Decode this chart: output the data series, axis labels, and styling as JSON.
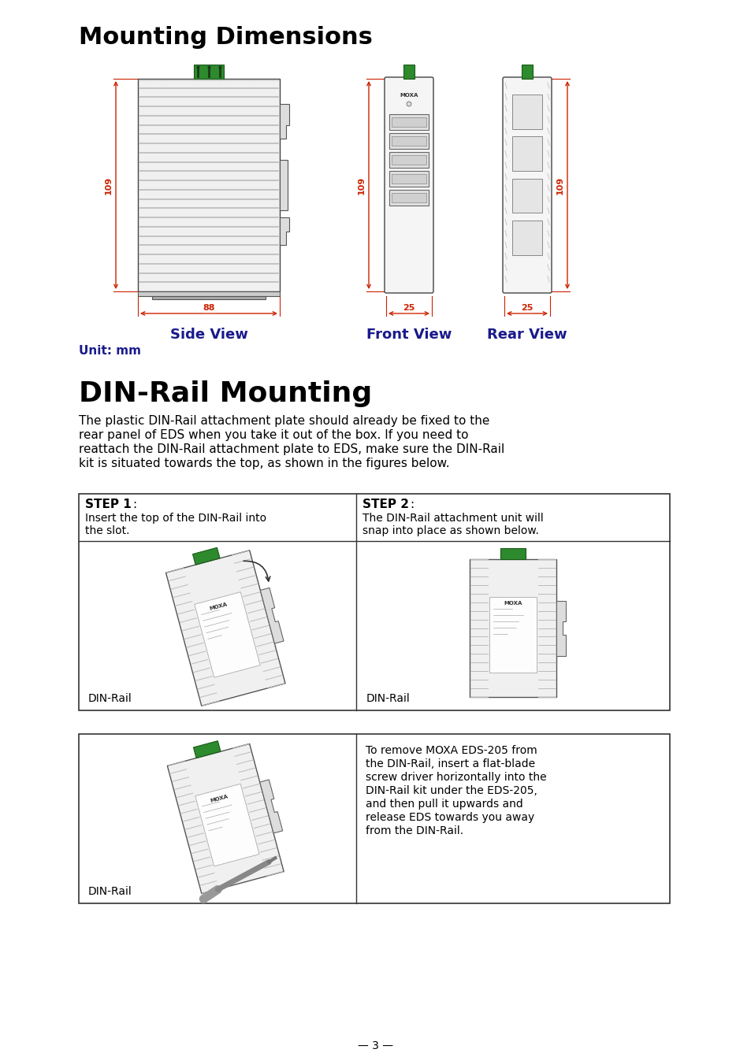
{
  "title": "Mounting Dimensions",
  "title_fontsize": 22,
  "bg_color": "#ffffff",
  "dim_color": "#cc2200",
  "label_color": "#1a1a8c",
  "green_color": "#2d8a2d",
  "side_view_label": "Side View",
  "front_view_label": "Front View",
  "rear_view_label": "Rear View",
  "unit_label": "Unit: mm",
  "dim_88": "88",
  "dim_25a": "25",
  "dim_25b": "25",
  "dim_109a": "109",
  "dim_109b": "109",
  "dim_109c": "109",
  "din_rail_title": "DIN-Rail Mounting",
  "din_rail_para": "The plastic DIN-Rail attachment plate should already be fixed to the\nrear panel of EDS when you take it out of the box. If you need to\nreattach the DIN-Rail attachment plate to EDS, make sure the DIN-Rail\nkit is situated towards the top, as shown in the figures below.",
  "step1_title": "STEP 1",
  "step1_colon": ":",
  "step1_text": "Insert the top of the DIN-Rail into\nthe slot.",
  "step2_title": "STEP 2",
  "step2_colon": ":",
  "step2_text": "The DIN-Rail attachment unit will\nsnap into place as shown below.",
  "step1_dinrail": "DIN-Rail",
  "step2_dinrail": "DIN-Rail",
  "step3_dinrail": "DIN-Rail",
  "remove_text": "To remove MOXA EDS-205 from\nthe DIN-Rail, insert a flat-blade\nscrew driver horizontally into the\nDIN-Rail kit under the EDS-205,\nand then pull it upwards and\nrelease EDS towards you away\nfrom the DIN-Rail.",
  "page_num": "— 3 —"
}
